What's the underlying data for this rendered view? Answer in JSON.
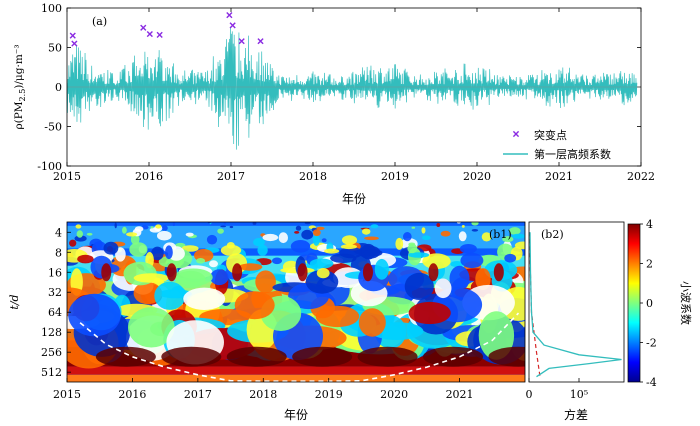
{
  "chart_data": [
    {
      "type": "line",
      "panel_label": "(a)",
      "ylabel": "ρ(PM2.5)/μg·m⁻³",
      "xlabel": "年份",
      "xlim": [
        2015,
        2022
      ],
      "ylim": [
        -100,
        100
      ],
      "x_ticks": [
        "2015",
        "2016",
        "2017",
        "2018",
        "2019",
        "2020",
        "2021",
        "2022"
      ],
      "y_ticks": [
        "100",
        "50",
        "0",
        "-50",
        "-100"
      ],
      "legend": {
        "position": "bottom-right",
        "entries": [
          "突变点",
          "第一层高频系数"
        ]
      },
      "series": [
        {
          "name": "第一层高频系数",
          "color": "#33bdbd",
          "envelope": [
            {
              "x": 2015.0,
              "amp": 35
            },
            {
              "x": 2015.1,
              "amp": 62
            },
            {
              "x": 2015.3,
              "amp": 30
            },
            {
              "x": 2015.6,
              "amp": 18
            },
            {
              "x": 2015.9,
              "amp": 45
            },
            {
              "x": 2016.0,
              "amp": 55
            },
            {
              "x": 2016.15,
              "amp": 52
            },
            {
              "x": 2016.4,
              "amp": 20
            },
            {
              "x": 2016.7,
              "amp": 22
            },
            {
              "x": 2016.95,
              "amp": 70
            },
            {
              "x": 2017.0,
              "amp": 88
            },
            {
              "x": 2017.1,
              "amp": 70
            },
            {
              "x": 2017.35,
              "amp": 55
            },
            {
              "x": 2017.6,
              "amp": 16
            },
            {
              "x": 2018.0,
              "amp": 20
            },
            {
              "x": 2018.3,
              "amp": 14
            },
            {
              "x": 2018.8,
              "amp": 30
            },
            {
              "x": 2019.0,
              "amp": 28
            },
            {
              "x": 2019.3,
              "amp": 15
            },
            {
              "x": 2019.8,
              "amp": 28
            },
            {
              "x": 2020.0,
              "amp": 30
            },
            {
              "x": 2020.3,
              "amp": 14
            },
            {
              "x": 2020.7,
              "amp": 16
            },
            {
              "x": 2020.9,
              "amp": 26
            },
            {
              "x": 2021.1,
              "amp": 25
            },
            {
              "x": 2021.4,
              "amp": 14
            },
            {
              "x": 2021.8,
              "amp": 24
            },
            {
              "x": 2021.95,
              "amp": 20
            }
          ]
        },
        {
          "name": "突变点",
          "marker": "x",
          "color": "#8a2be2",
          "points": [
            {
              "x": 2015.07,
              "y": 65
            },
            {
              "x": 2015.09,
              "y": 55
            },
            {
              "x": 2015.93,
              "y": 75
            },
            {
              "x": 2016.01,
              "y": 67
            },
            {
              "x": 2016.13,
              "y": 66
            },
            {
              "x": 2016.98,
              "y": 91
            },
            {
              "x": 2017.02,
              "y": 78
            },
            {
              "x": 2017.13,
              "y": 58
            },
            {
              "x": 2017.36,
              "y": 58
            }
          ]
        }
      ]
    },
    {
      "type": "heatmap",
      "panel_label": "(b1)",
      "ylabel": "t/d",
      "xlabel": "年份",
      "xlim": [
        2015,
        2022
      ],
      "y_ticks": [
        "4",
        "8",
        "16",
        "32",
        "64",
        "128",
        "256",
        "512"
      ],
      "x_ticks": [
        "2015",
        "2016",
        "2017",
        "2018",
        "2019",
        "2020",
        "2021"
      ],
      "colorbar": {
        "label": "小波系数",
        "min": -4,
        "max": 4,
        "ticks": [
          "4",
          "2",
          "0",
          "-2",
          "-4"
        ]
      },
      "dominant_period_days": 365
    },
    {
      "type": "line",
      "panel_label": "(b2)",
      "xlabel": "方差",
      "x_ticks": [
        "0",
        "10⁵"
      ],
      "series": [
        {
          "name": "",
          "color": "#33bdbd",
          "points": [
            {
              "period": 4,
              "variance": 2000
            },
            {
              "period": 16,
              "variance": 3000
            },
            {
              "period": 64,
              "variance": 5000
            },
            {
              "period": 128,
              "variance": 8000
            },
            {
              "period": 200,
              "variance": 30000
            },
            {
              "period": 280,
              "variance": 100000
            },
            {
              "period": 330,
              "variance": 185000
            },
            {
              "period": 380,
              "variance": 120000
            },
            {
              "period": 450,
              "variance": 40000
            },
            {
              "period": 600,
              "variance": 15000
            }
          ]
        },
        {
          "name": "",
          "color": "#d62728",
          "style": "dashed",
          "points": [
            {
              "period": 4,
              "variance": 500
            },
            {
              "period": 64,
              "variance": 5000
            },
            {
              "period": 256,
              "variance": 15000
            },
            {
              "period": 600,
              "variance": 22000
            }
          ]
        }
      ]
    }
  ]
}
